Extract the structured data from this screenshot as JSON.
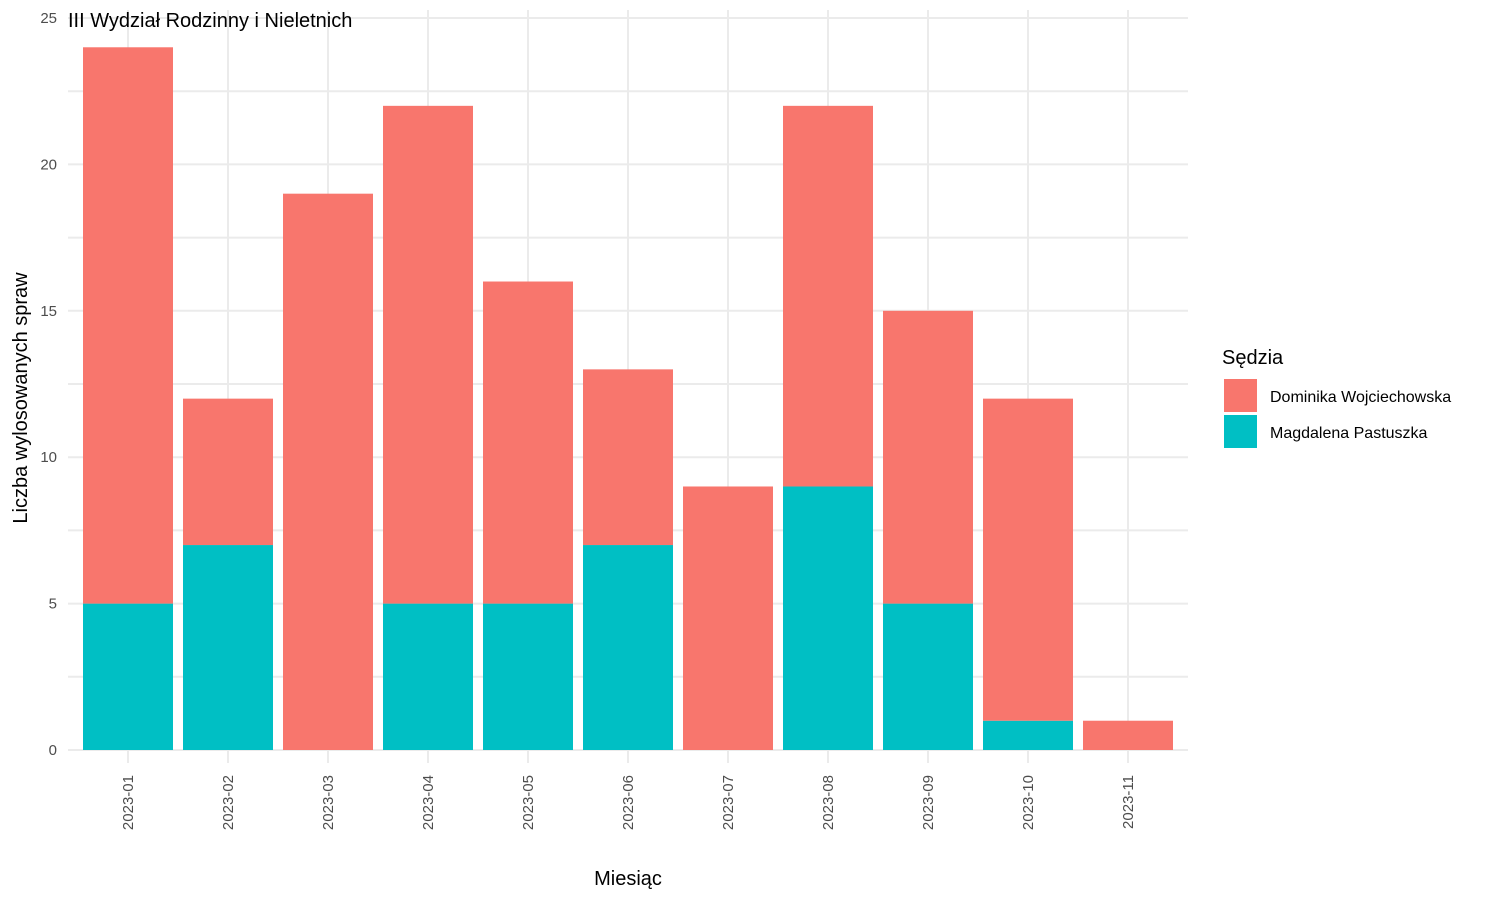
{
  "chart_data": {
    "type": "bar",
    "stacked": true,
    "title": "III Wydział Rodzinny i Nieletnich",
    "xlabel": "Miesiąc",
    "ylabel": "Liczba wylosowanych spraw",
    "ylim": [
      0,
      25
    ],
    "yticks": [
      0,
      5,
      10,
      15,
      20,
      25
    ],
    "grid": true,
    "legend_title": "Sędzia",
    "legend_position": "right",
    "categories": [
      "2023-01",
      "2023-02",
      "2023-03",
      "2023-04",
      "2023-05",
      "2023-06",
      "2023-07",
      "2023-08",
      "2023-09",
      "2023-10",
      "2023-11"
    ],
    "series": [
      {
        "name": "Magdalena Pastuszka",
        "color": "#00BFC4",
        "values": [
          5,
          7,
          0,
          5,
          5,
          7,
          0,
          9,
          5,
          1,
          0
        ]
      },
      {
        "name": "Dominika Wojciechowska",
        "color": "#F8766D",
        "values": [
          19,
          5,
          19,
          17,
          11,
          6,
          9,
          13,
          10,
          11,
          1
        ]
      }
    ],
    "legend_order": [
      "Dominika Wojciechowska",
      "Magdalena Pastuszka"
    ]
  }
}
